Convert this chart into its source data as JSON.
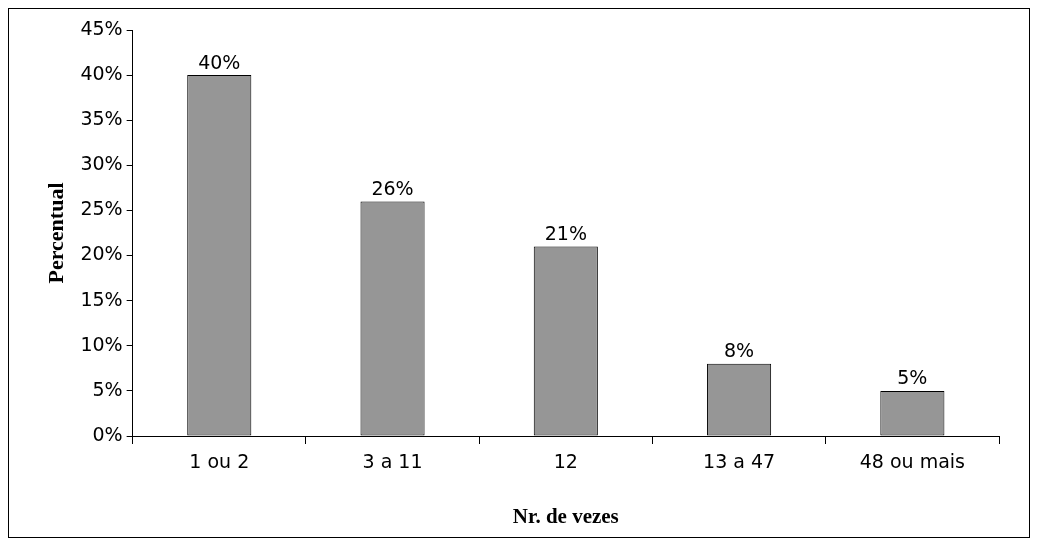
{
  "chart_data": {
    "type": "bar",
    "xlabel": "Nr. de vezes",
    "ylabel": "Percentual",
    "categories": [
      "1 ou 2",
      "3 a 11",
      "12",
      "13 a 47",
      "48 ou mais"
    ],
    "values": [
      40,
      26,
      21,
      8,
      5
    ],
    "color": "#969696",
    "value_labels": [
      "40%",
      "26%",
      "21%",
      "8%",
      "5%"
    ],
    "ylim": [
      0,
      45
    ],
    "yticks": [
      {
        "value": 0,
        "label": "0%"
      },
      {
        "value": 5,
        "label": "5%"
      },
      {
        "value": 10,
        "label": "10%"
      },
      {
        "value": 15,
        "label": "15%"
      },
      {
        "value": 20,
        "label": "20%"
      },
      {
        "value": 25,
        "label": "25%"
      },
      {
        "value": 30,
        "label": "30%"
      },
      {
        "value": 35,
        "label": "35%"
      },
      {
        "value": 40,
        "label": "40%"
      },
      {
        "value": 45,
        "label": "45%"
      }
    ],
    "grid": false,
    "legend": false
  }
}
